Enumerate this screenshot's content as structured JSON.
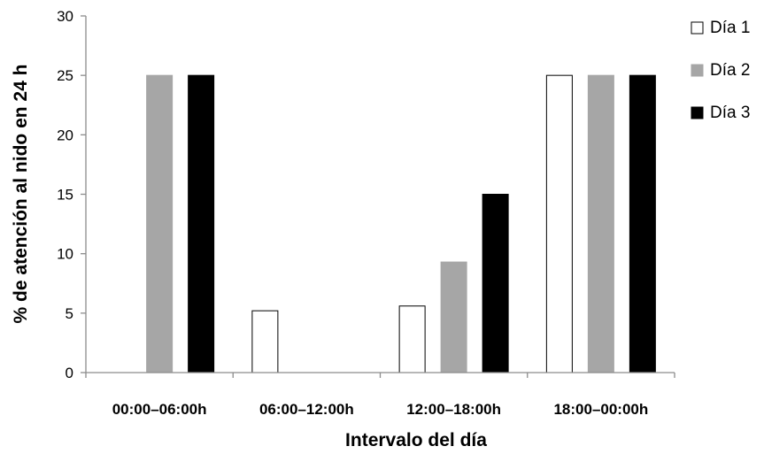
{
  "chart_data": {
    "type": "bar",
    "title": "",
    "xlabel": "Intervalo del día",
    "ylabel": "% de atención al nido en 24 h",
    "ylim": [
      0,
      30
    ],
    "yticks": [
      0,
      5,
      10,
      15,
      20,
      25,
      30
    ],
    "grid": false,
    "legend_position": "top-right",
    "categories": [
      "00:00–06:00h",
      "06:00–12:00h",
      "12:00–18:00h",
      "18:00–00:00h"
    ],
    "series": [
      {
        "name": "Día 1",
        "values": [
          0,
          5.2,
          5.6,
          25
        ],
        "color": "#ffffff",
        "stroke": "#000000"
      },
      {
        "name": "Día 2",
        "values": [
          25,
          0,
          9.3,
          25
        ],
        "color": "#a6a6a6",
        "stroke": "#a6a6a6"
      },
      {
        "name": "Día 3",
        "values": [
          25,
          0,
          15,
          25
        ],
        "color": "#000000",
        "stroke": "#000000"
      }
    ]
  }
}
